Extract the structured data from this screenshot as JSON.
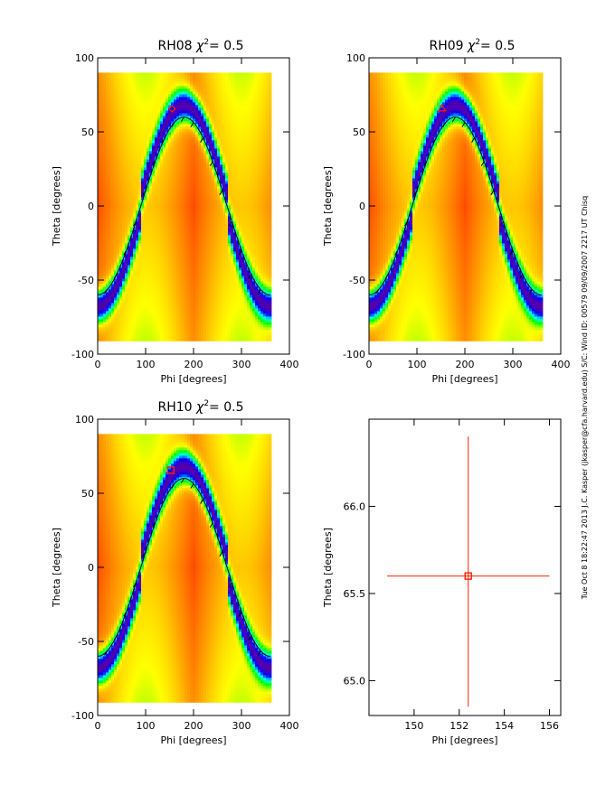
{
  "chart_data": [
    {
      "type": "heatmap",
      "panel_id": "RH08",
      "title_prefix": "RH08",
      "chi_symbol": "χ",
      "chi_power": "2",
      "chi_value": "=   0.5",
      "xlabel": "Phi [degrees]",
      "ylabel": "Theta [degrees]",
      "xlim": [
        0,
        400
      ],
      "ylim": [
        -100,
        100
      ],
      "xticks": [
        "0",
        "100",
        "200",
        "300",
        "400"
      ],
      "yticks": [
        "-100",
        "-50",
        "0",
        "50",
        "100"
      ],
      "data_extent": {
        "phi": [
          0,
          360
        ],
        "theta": [
          -90,
          90
        ]
      },
      "colormap": [
        "#d90000",
        "#ff5a00",
        "#ffa500",
        "#ffff00",
        "#00ff00",
        "#00ffff",
        "#0000ff",
        "#5500aa"
      ],
      "ridge_curve": {
        "amplitude": 60,
        "peak_phi": 180,
        "color": "#000000"
      },
      "ridge_tick_phi": [
        20,
        40,
        60,
        80,
        100,
        120,
        140,
        160,
        180,
        200,
        220,
        240,
        260,
        280,
        300,
        320,
        340
      ],
      "marker": {
        "shape": "diamond",
        "phi": 155,
        "theta": 65.6,
        "color": "#ff2000"
      }
    },
    {
      "type": "heatmap",
      "panel_id": "RH09",
      "title_prefix": "RH09",
      "chi_symbol": "χ",
      "chi_power": "2",
      "chi_value": "=   0.5",
      "xlabel": "Phi [degrees]",
      "ylabel": "Theta [degrees]",
      "xlim": [
        0,
        400
      ],
      "ylim": [
        -100,
        100
      ],
      "xticks": [
        "0",
        "100",
        "200",
        "300",
        "400"
      ],
      "yticks": [
        "-100",
        "-50",
        "0",
        "50",
        "100"
      ],
      "data_extent": {
        "phi": [
          0,
          360
        ],
        "theta": [
          -90,
          90
        ]
      },
      "colormap": [
        "#d90000",
        "#ff5a00",
        "#ffa500",
        "#ffff00",
        "#00ff00",
        "#00ffff",
        "#0000ff",
        "#5500aa"
      ],
      "ridge_curve": {
        "amplitude": 60,
        "peak_phi": 180,
        "color": "#000000"
      },
      "ridge_tick_phi": [
        20,
        40,
        60,
        80,
        100,
        120,
        140,
        160,
        180,
        200,
        220,
        240,
        260,
        280,
        300,
        320,
        340
      ],
      "marker": {
        "shape": "triangle",
        "phi": 152,
        "theta": 66,
        "color": "#ff2000"
      }
    },
    {
      "type": "heatmap",
      "panel_id": "RH10",
      "title_prefix": "RH10",
      "chi_symbol": "χ",
      "chi_power": "2",
      "chi_value": "=   0.5",
      "xlabel": "Phi [degrees]",
      "ylabel": "Theta [degrees]",
      "xlim": [
        0,
        400
      ],
      "ylim": [
        -100,
        100
      ],
      "xticks": [
        "0",
        "100",
        "200",
        "300",
        "400"
      ],
      "yticks": [
        "-100",
        "-50",
        "0",
        "50",
        "100"
      ],
      "data_extent": {
        "phi": [
          0,
          360
        ],
        "theta": [
          -90,
          90
        ]
      },
      "colormap": [
        "#d90000",
        "#ff5a00",
        "#ffa500",
        "#ffff00",
        "#00ff00",
        "#00ffff",
        "#0000ff",
        "#5500aa"
      ],
      "ridge_curve": {
        "amplitude": 60,
        "peak_phi": 180,
        "color": "#000000"
      },
      "ridge_tick_phi": [
        20,
        40,
        60,
        80,
        100,
        120,
        140,
        160,
        180,
        200,
        220,
        240,
        260,
        280,
        300,
        320,
        340
      ],
      "marker": {
        "shape": "square",
        "phi": 152.4,
        "theta": 65.6,
        "color": "#ff2000"
      }
    },
    {
      "type": "scatter",
      "panel_id": "zoom",
      "xlabel": "Phi [degrees]",
      "ylabel": "Theta [degrees]",
      "xlim": [
        148,
        156.5
      ],
      "ylim": [
        64.8,
        66.5
      ],
      "xticks": [
        150,
        152,
        154,
        156
      ],
      "yticks": [
        65.0,
        65.5,
        66.0
      ],
      "xtick_labels": [
        "150",
        "152",
        "154",
        "156"
      ],
      "ytick_labels": [
        "65.0",
        "65.5",
        "66.0"
      ],
      "point": {
        "phi": 152.4,
        "theta": 65.6,
        "color": "#ff2000"
      },
      "error_x": [
        148.8,
        156
      ],
      "error_y": [
        64.85,
        66.4
      ]
    }
  ],
  "sidebar_text": "Tue Oct  8 18:22:47 2013  J.C. Kasper (jkasper@cfa.harvard.edu)  S/C: Wind ID: 00579 09/09/2007  2217 UT Chisq"
}
